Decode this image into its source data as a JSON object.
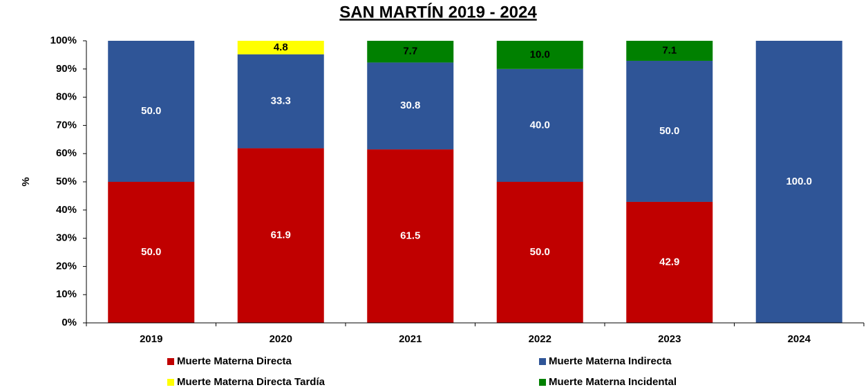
{
  "chart_data": {
    "type": "stacked_bar",
    "title": "SAN MARTÍN 2019 - 2024",
    "y_label": "%",
    "categories": [
      "2019",
      "2020",
      "2021",
      "2022",
      "2023",
      "2024"
    ],
    "series": [
      {
        "name": "Muerte Materna Directa",
        "color": "#c00000",
        "values": [
          50.0,
          61.9,
          61.5,
          50.0,
          42.9,
          null
        ],
        "value_labels": [
          "50.0",
          "61.9",
          "61.5",
          "50.0",
          "42.9",
          null
        ]
      },
      {
        "name": "Muerte Materna Indirecta",
        "color": "#2f5597",
        "values": [
          50.0,
          33.3,
          30.8,
          40.0,
          50.0,
          100.0
        ],
        "value_labels": [
          "50.0",
          "33.3",
          "30.8",
          "40.0",
          "50.0",
          "100.0"
        ]
      },
      {
        "name": "Muerte Materna Directa Tardía",
        "color": "#ffff00",
        "values": [
          null,
          4.8,
          null,
          null,
          null,
          null
        ],
        "value_labels": [
          null,
          "4.8",
          null,
          null,
          null,
          null
        ]
      },
      {
        "name": "Muerte Materna Incidental",
        "color": "#008000",
        "values": [
          null,
          null,
          7.7,
          10.0,
          7.1,
          null
        ],
        "value_labels": [
          null,
          null,
          "7.7",
          "10.0",
          "7.1",
          null
        ]
      }
    ],
    "ylim": [
      0,
      100
    ],
    "yticks": [
      {
        "value": 0,
        "label": "0%"
      },
      {
        "value": 10,
        "label": "10%"
      },
      {
        "value": 20,
        "label": "20%"
      },
      {
        "value": 30,
        "label": "30%"
      },
      {
        "value": 40,
        "label": "40%"
      },
      {
        "value": 50,
        "label": "50%"
      },
      {
        "value": 60,
        "label": "60%"
      },
      {
        "value": 70,
        "label": "70%"
      },
      {
        "value": 80,
        "label": "80%"
      },
      {
        "value": 90,
        "label": "90%"
      },
      {
        "value": 100,
        "label": "100%"
      }
    ],
    "legend": "bottom"
  }
}
